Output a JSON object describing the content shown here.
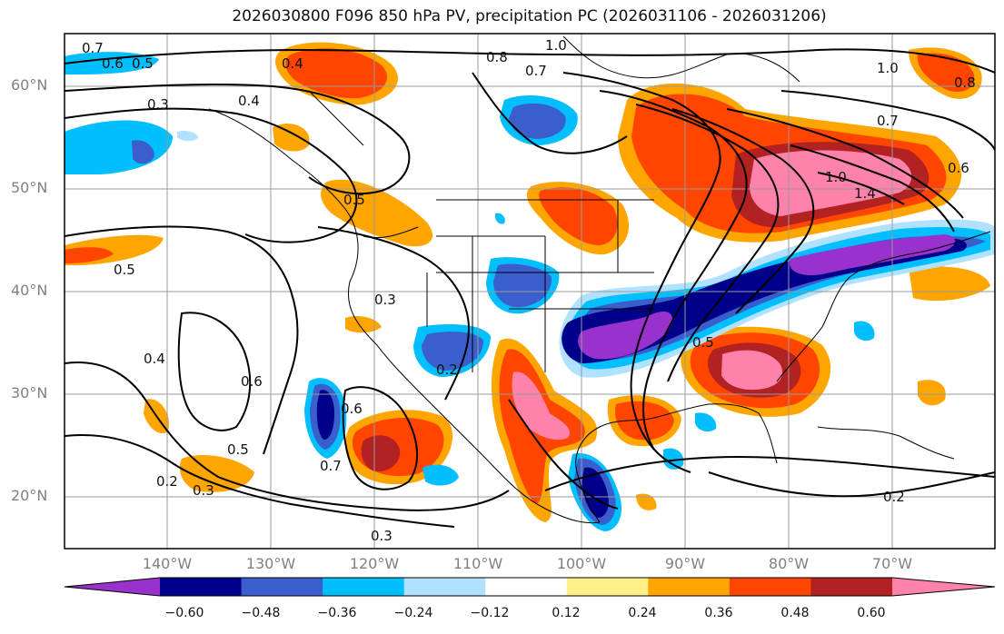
{
  "title": "2026030800 F096 850 hPa PV, precipitation PC (2026031106 - 2026031206)",
  "latitude_labels": [
    "60°N",
    "50°N",
    "40°N",
    "30°N",
    "20°N"
  ],
  "longitude_labels": [
    "140°W",
    "130°W",
    "120°W",
    "110°W",
    "100°W",
    "90°W",
    "80°W",
    "70°W"
  ],
  "colorbar": {
    "ticks": [
      "−0.60",
      "−0.48",
      "−0.36",
      "−0.24",
      "−0.12",
      "0.12",
      "0.24",
      "0.36",
      "0.48",
      "0.60"
    ],
    "colors": [
      "#9932cc",
      "#00008b",
      "#3a5fcd",
      "#00bfff",
      "#b0e2ff",
      "#ffffff",
      "#fff08a",
      "#ffa500",
      "#ff4500",
      "#b22222",
      "#ff82ab"
    ]
  },
  "pv_contour_labels": [
    "0.7",
    "0.6",
    "0.5",
    "0.4",
    "0.8",
    "1.0",
    "0.7",
    "0.4",
    "0.3",
    "1.0",
    "0.7",
    "0.6",
    "0.8",
    "0.5",
    "0.3",
    "1.0",
    "1.4",
    "0.5",
    "0.4",
    "0.6",
    "0.6",
    "0.5",
    "0.7",
    "0.2",
    "0.3",
    "0.3",
    "0.2",
    "0.5",
    "0.2"
  ]
}
